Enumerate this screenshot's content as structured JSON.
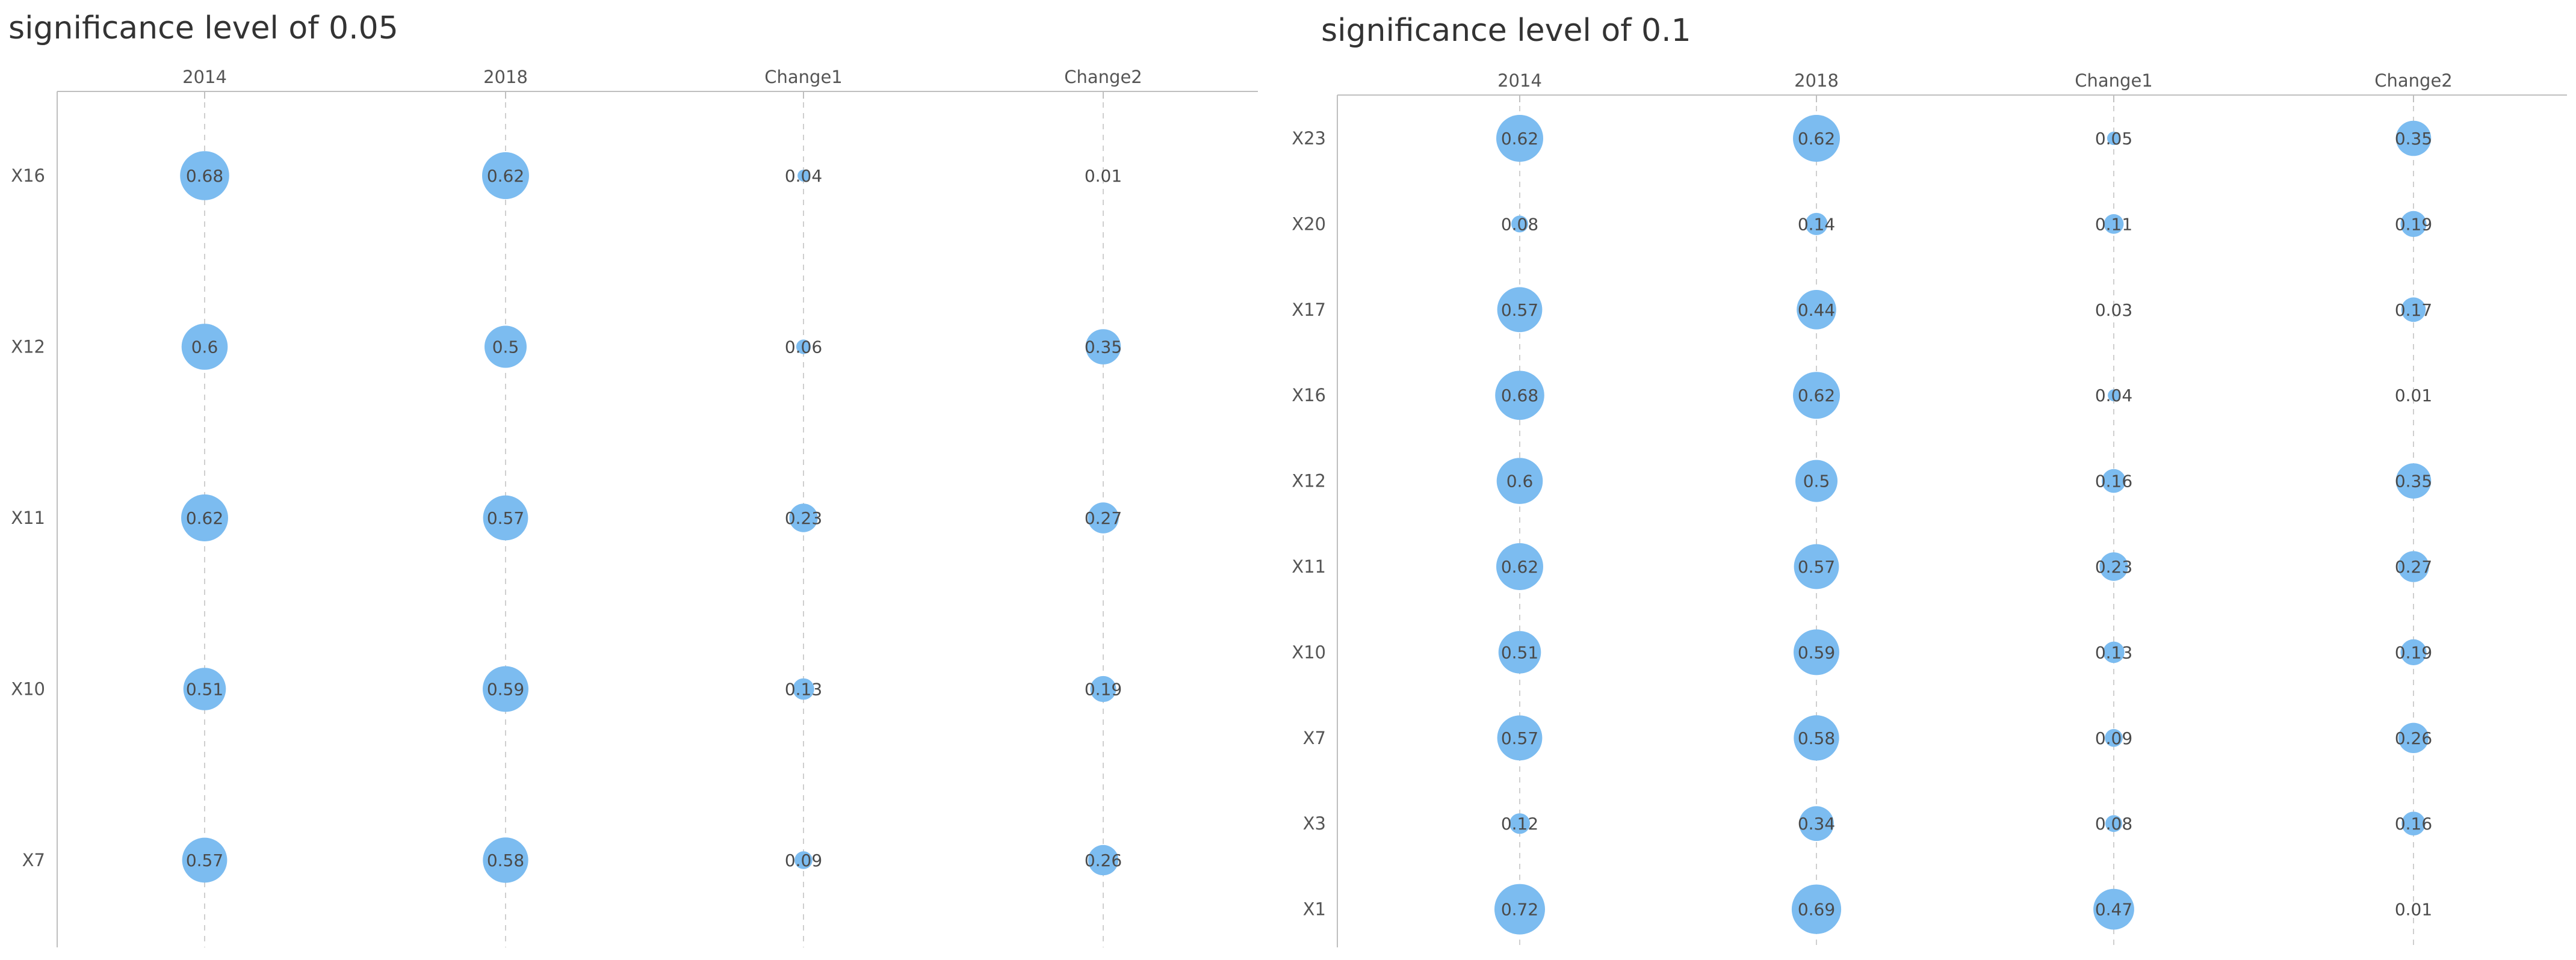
{
  "colors": {
    "bubble": "#7cbcf0",
    "axis": "#bfbfbf",
    "grid": "#cfcfcf",
    "text": "#555555"
  },
  "chart_data": [
    {
      "type": "bubble-matrix",
      "title": "significance level of 0.05",
      "columns": [
        "2014",
        "2018",
        "Change1",
        "Change2"
      ],
      "rows": [
        "X16",
        "X12",
        "X11",
        "X10",
        "X7"
      ],
      "values": [
        [
          0.68,
          0.62,
          0.04,
          0.01
        ],
        [
          0.6,
          0.5,
          0.06,
          0.35
        ],
        [
          0.62,
          0.57,
          0.23,
          0.27
        ],
        [
          0.51,
          0.59,
          0.13,
          0.19
        ],
        [
          0.57,
          0.58,
          0.09,
          0.26
        ]
      ],
      "labels": [
        [
          "0.68",
          "0.62",
          "0.04",
          "0.01"
        ],
        [
          "0.6",
          "0.5",
          "0.06",
          "0.35"
        ],
        [
          "0.62",
          "0.57",
          "0.23",
          "0.27"
        ],
        [
          "0.51",
          "0.59",
          "0.13",
          "0.19"
        ],
        [
          "0.57",
          "0.58",
          "0.09",
          "0.26"
        ]
      ]
    },
    {
      "type": "bubble-matrix",
      "title": "significance level of 0.1",
      "columns": [
        "2014",
        "2018",
        "Change1",
        "Change2"
      ],
      "rows": [
        "X23",
        "X20",
        "X17",
        "X16",
        "X12",
        "X11",
        "X10",
        "X7",
        "X3",
        "X1"
      ],
      "values": [
        [
          0.62,
          0.62,
          0.05,
          0.35
        ],
        [
          0.08,
          0.14,
          0.11,
          0.19
        ],
        [
          0.57,
          0.44,
          0.03,
          0.17
        ],
        [
          0.68,
          0.62,
          0.04,
          0.01
        ],
        [
          0.6,
          0.5,
          0.16,
          0.35
        ],
        [
          0.62,
          0.57,
          0.23,
          0.27
        ],
        [
          0.51,
          0.59,
          0.13,
          0.19
        ],
        [
          0.57,
          0.58,
          0.09,
          0.26
        ],
        [
          0.12,
          0.34,
          0.08,
          0.16
        ],
        [
          0.72,
          0.69,
          0.47,
          0.01
        ]
      ],
      "labels": [
        [
          "0.62",
          "0.62",
          "0.05",
          "0.35"
        ],
        [
          "0.08",
          "0.14",
          "0.11",
          "0.19"
        ],
        [
          "0.57",
          "0.44",
          "0.03",
          "0.17"
        ],
        [
          "0.68",
          "0.62",
          "0.04",
          "0.01"
        ],
        [
          "0.6",
          "0.5",
          "0.16",
          "0.35"
        ],
        [
          "0.62",
          "0.57",
          "0.23",
          "0.27"
        ],
        [
          "0.51",
          "0.59",
          "0.13",
          "0.19"
        ],
        [
          "0.57",
          "0.58",
          "0.09",
          "0.26"
        ],
        [
          "0.12",
          "0.34",
          "0.08",
          "0.16"
        ],
        [
          "0.72",
          "0.69",
          "0.47",
          "0.01"
        ]
      ]
    }
  ]
}
